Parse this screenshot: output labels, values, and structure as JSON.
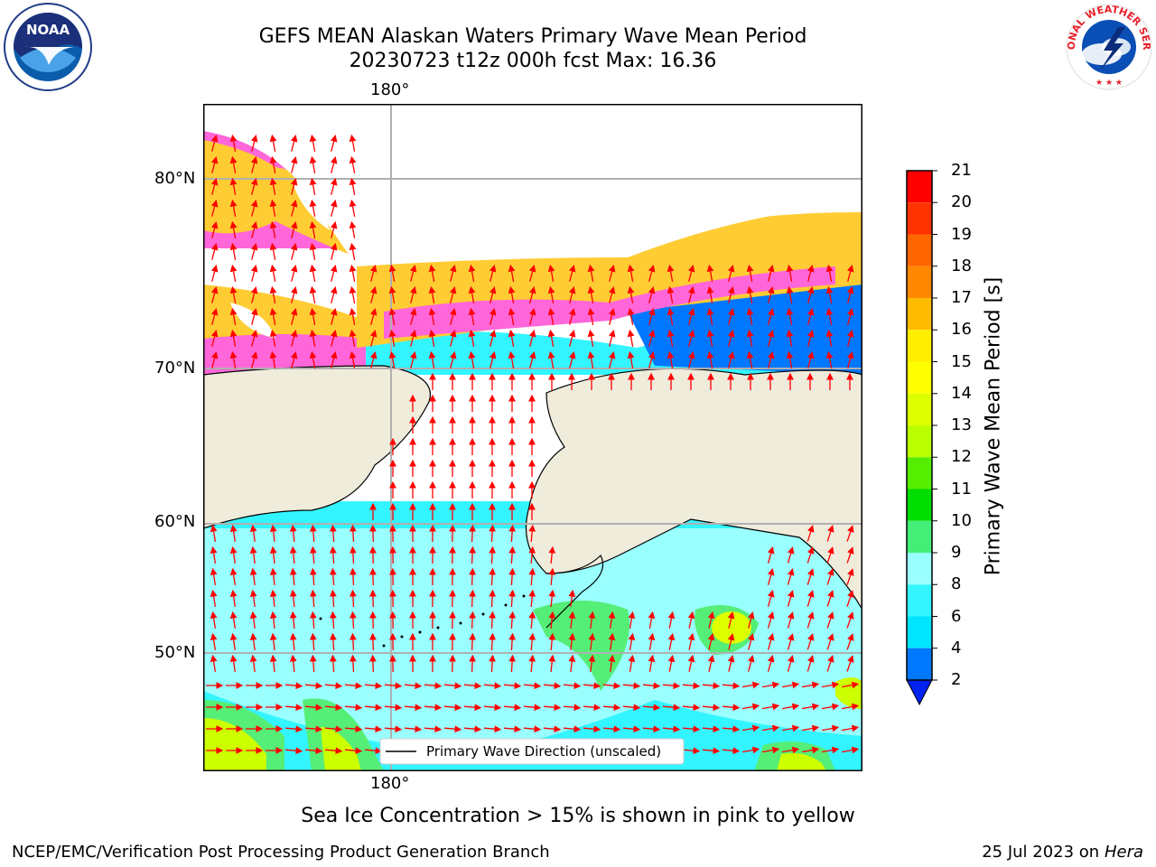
{
  "title": {
    "line1": "GEFS MEAN Alaskan Waters Primary Wave Mean Period",
    "line2": "20230723 t12z 000h fcst   Max: 16.36"
  },
  "logos": {
    "left": {
      "icon": "noaa-logo",
      "text": "NOAA"
    },
    "right": {
      "icon": "national-weather-service-logo",
      "text": "NATIONAL WEATHER SERVICE"
    }
  },
  "map": {
    "top_lon_label": "180°",
    "bottom_lon_label": "180°",
    "lat_labels": [
      "80°N",
      "70°N",
      "60°N",
      "50°N"
    ],
    "legend_label": "Primary Wave Direction (unscaled)",
    "colors": {
      "land": "#efecdc",
      "ice_pink": "#ff66d9",
      "ice_yellow": "#ffcc33",
      "arrow": "#ff0000",
      "grid": "#b0b0b0"
    }
  },
  "colorbar": {
    "label": "Primary Wave Mean Period [s]",
    "ticks": [
      "2",
      "4",
      "6",
      "8",
      "9",
      "10",
      "11",
      "12",
      "13",
      "14",
      "15",
      "16",
      "17",
      "18",
      "19",
      "20",
      "21"
    ],
    "colors": [
      "#0077ff",
      "#00e5ff",
      "#33f5ff",
      "#99ffff",
      "#44ee77",
      "#00dd00",
      "#55ee00",
      "#bbff00",
      "#ddff00",
      "#ffff00",
      "#ffee00",
      "#ffbb00",
      "#ff8800",
      "#ff6600",
      "#ff3300",
      "#ff0000"
    ],
    "extend_color": "#0022ee"
  },
  "note": "Sea Ice Concentration > 15% is shown in pink to yellow",
  "footer": {
    "left": "NCEP/EMC/Verification Post Processing Product Generation Branch",
    "date": "25 Jul 2023 on ",
    "machine": "Hera"
  }
}
